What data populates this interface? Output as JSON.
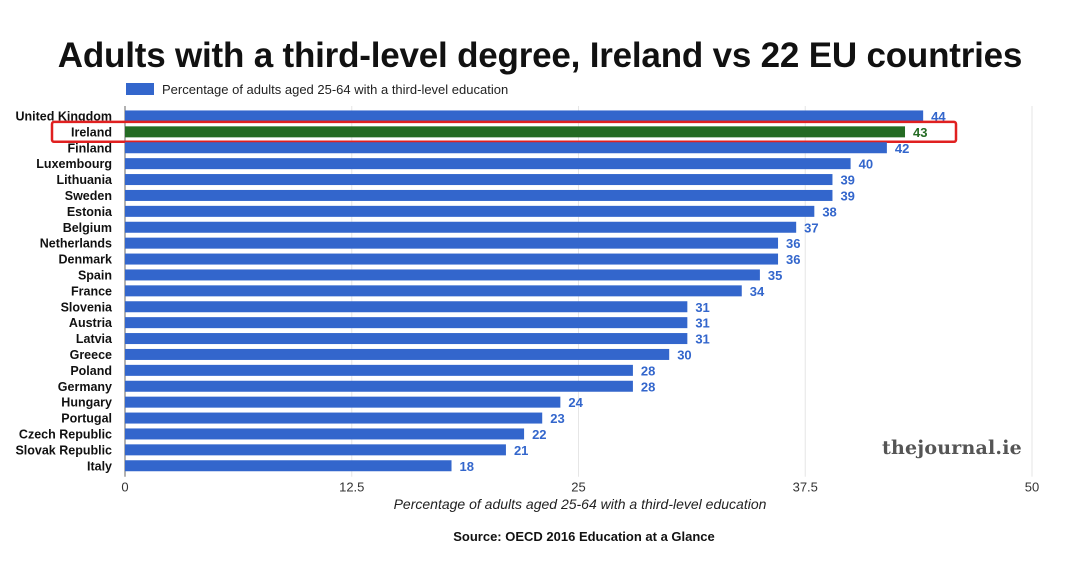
{
  "colors": {
    "bar": "#3366cc",
    "highlight_bar": "#246b23",
    "highlight_box": "#e02020",
    "grid": "#e6e6e6",
    "axis": "#666666",
    "text": "#111111",
    "watermark": "#555555"
  },
  "chart_data": {
    "type": "bar",
    "orientation": "horizontal",
    "title": "Adults with a third-level degree, Ireland vs 22 EU countries",
    "legend": "Percentage of adults aged 25-64 with a third-level education",
    "xlabel": "Percentage of adults aged 25-64 with a third-level education",
    "ylabel": "",
    "xlim": [
      0,
      50
    ],
    "xticks": [
      "0",
      "12.5",
      "25",
      "37.5",
      "50"
    ],
    "xtick_values": [
      0,
      12.5,
      25,
      37.5,
      50
    ],
    "grid": true,
    "legend_position": "top-left",
    "highlight": "Ireland",
    "categories": [
      "United Kingdom",
      "Ireland",
      "Finland",
      "Luxembourg",
      "Lithuania",
      "Sweden",
      "Estonia",
      "Belgium",
      "Netherlands",
      "Denmark",
      "Spain",
      "France",
      "Slovenia",
      "Austria",
      "Latvia",
      "Greece",
      "Poland",
      "Germany",
      "Hungary",
      "Portugal",
      "Czech Republic",
      "Slovak Republic",
      "Italy"
    ],
    "values": [
      44,
      43,
      42,
      40,
      39,
      39,
      38,
      37,
      36,
      36,
      35,
      34,
      31,
      31,
      31,
      30,
      28,
      28,
      24,
      23,
      22,
      21,
      18
    ]
  },
  "source": "Source: OECD 2016 Education at a Glance",
  "watermark": "thejournal.ie"
}
